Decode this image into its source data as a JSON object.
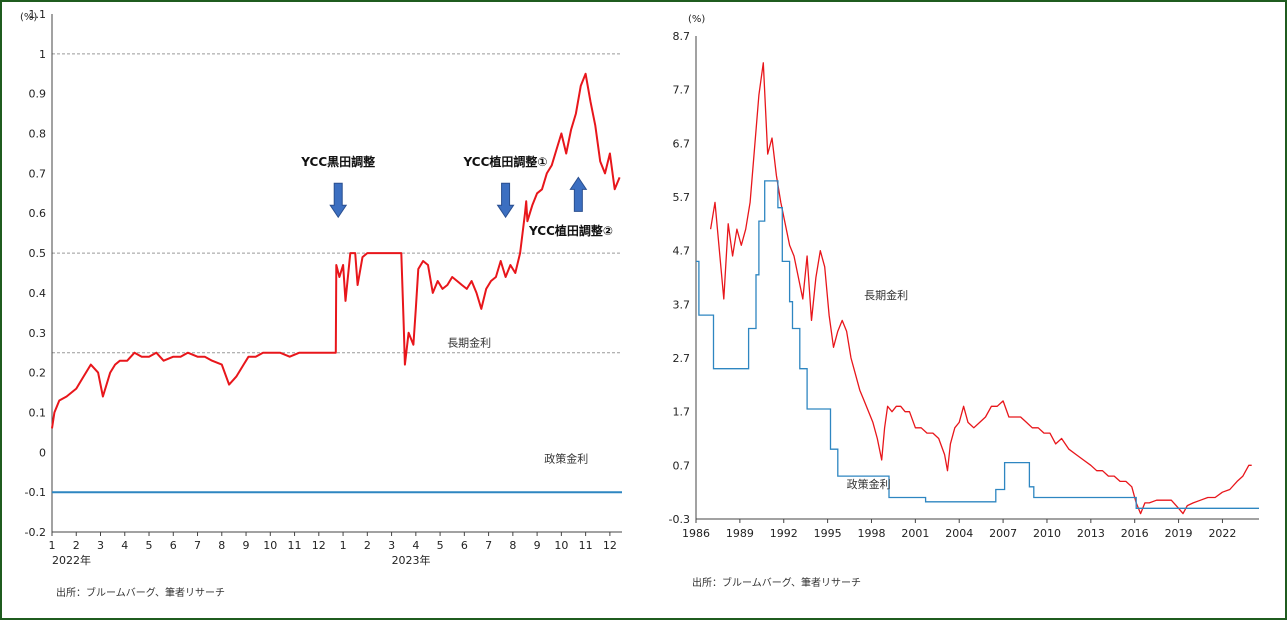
{
  "colors": {
    "long_rate": "#e8161b",
    "policy_rate": "#2e86c1",
    "arrow": "#3c6fc1",
    "frame": "#1f5c1f",
    "grid": "#9a9a9a",
    "axis": "#444444"
  },
  "chart_data": [
    {
      "type": "line",
      "unit": "(%)",
      "ylim": [
        -0.2,
        1.1
      ],
      "y_ticks": [
        -0.2,
        -0.1,
        0,
        0.1,
        0.2,
        0.3,
        0.4,
        0.5,
        0.6,
        0.7,
        0.8,
        0.9,
        1,
        1.1
      ],
      "y_tick_labels": [
        "-0.2",
        "-0.1",
        "0",
        "0.1",
        "0.2",
        "0.3",
        "0.4",
        "0.5",
        "0.6",
        "0.7",
        "0.8",
        "0.9",
        "1",
        "1.1"
      ],
      "x_tick_labels": [
        "1",
        "2",
        "3",
        "4",
        "5",
        "6",
        "7",
        "8",
        "9",
        "10",
        "11",
        "12",
        "1",
        "2",
        "3",
        "4",
        "5",
        "6",
        "7",
        "8",
        "9",
        "10",
        "11",
        "12"
      ],
      "year_labels": [
        {
          "text": "2022年",
          "month_index": 0
        },
        {
          "text": "2023年",
          "month_index": 14
        }
      ],
      "xlim": [
        0,
        23.5
      ],
      "dashed_lines": [
        0.25,
        0.5,
        1.0
      ],
      "series": [
        {
          "name": "長期金利",
          "x": [
            0,
            0.1,
            0.3,
            0.6,
            1,
            1.3,
            1.6,
            1.9,
            2.1,
            2.4,
            2.6,
            2.8,
            3.1,
            3.4,
            3.7,
            4,
            4.3,
            4.6,
            5,
            5.3,
            5.6,
            6,
            6.3,
            6.6,
            7,
            7.3,
            7.6,
            7.9,
            8.1,
            8.4,
            8.7,
            9,
            9.4,
            9.8,
            10.2,
            10.6,
            11,
            11.4,
            11.7,
            11.72,
            11.85,
            12,
            12.1,
            12.3,
            12.5,
            12.6,
            12.8,
            13,
            13.2,
            13.4,
            13.6,
            13.8,
            14,
            14.2,
            14.4,
            14.5,
            14.55,
            14.7,
            14.9,
            15,
            15.1,
            15.3,
            15.5,
            15.7,
            15.9,
            16.1,
            16.3,
            16.5,
            16.7,
            16.9,
            17.1,
            17.3,
            17.5,
            17.7,
            17.9,
            18.1,
            18.3,
            18.5,
            18.7,
            18.9,
            19.1,
            19.3,
            19.5,
            19.55,
            19.6,
            19.8,
            20,
            20.2,
            20.4,
            20.6,
            20.8,
            21,
            21.2,
            21.4,
            21.6,
            21.8,
            22,
            22.2,
            22.4,
            22.6,
            22.8,
            23,
            23.2,
            23.4
          ],
          "y": [
            0.06,
            0.1,
            0.13,
            0.14,
            0.16,
            0.19,
            0.22,
            0.2,
            0.14,
            0.2,
            0.22,
            0.23,
            0.23,
            0.25,
            0.24,
            0.24,
            0.25,
            0.23,
            0.24,
            0.24,
            0.25,
            0.24,
            0.24,
            0.23,
            0.22,
            0.17,
            0.19,
            0.22,
            0.24,
            0.24,
            0.25,
            0.25,
            0.25,
            0.24,
            0.25,
            0.25,
            0.25,
            0.25,
            0.25,
            0.47,
            0.44,
            0.47,
            0.38,
            0.5,
            0.5,
            0.42,
            0.49,
            0.5,
            0.5,
            0.5,
            0.5,
            0.5,
            0.5,
            0.5,
            0.5,
            0.32,
            0.22,
            0.3,
            0.27,
            0.36,
            0.46,
            0.48,
            0.47,
            0.4,
            0.43,
            0.41,
            0.42,
            0.44,
            0.43,
            0.42,
            0.41,
            0.43,
            0.4,
            0.36,
            0.41,
            0.43,
            0.44,
            0.48,
            0.44,
            0.47,
            0.45,
            0.5,
            0.6,
            0.63,
            0.58,
            0.62,
            0.65,
            0.66,
            0.7,
            0.72,
            0.76,
            0.8,
            0.75,
            0.81,
            0.85,
            0.92,
            0.95,
            0.88,
            0.82,
            0.73,
            0.7,
            0.75,
            0.66,
            0.69
          ]
        },
        {
          "name": "政策金利",
          "x": [
            0,
            23.5
          ],
          "y": [
            -0.1,
            -0.1
          ]
        }
      ],
      "annotations": [
        {
          "text": "YCC黒田調整",
          "arrow": "down",
          "at_x": 11.8,
          "at_y": 0.59
        },
        {
          "text": "YCC植田調整①",
          "arrow": "down",
          "at_x": 18.7,
          "at_y": 0.59
        },
        {
          "text": "YCC植田調整②",
          "arrow": "up",
          "at_x": 21.7,
          "at_y": 0.6
        }
      ],
      "labels": {
        "long_rate": "長期金利",
        "policy_rate": "政策金利"
      },
      "source": "出所：ブルームバーグ、筆者リサーチ"
    },
    {
      "type": "line",
      "unit": "(%)",
      "ylim": [
        -0.3,
        8.7
      ],
      "y_ticks": [
        -0.3,
        0.7,
        1.7,
        2.7,
        3.7,
        4.7,
        5.7,
        6.7,
        7.7,
        8.7
      ],
      "y_tick_labels": [
        "-0.3",
        "0.7",
        "1.7",
        "2.7",
        "3.7",
        "4.7",
        "5.7",
        "6.7",
        "7.7",
        "8.7"
      ],
      "x_ticks": [
        1986,
        1989,
        1992,
        1995,
        1998,
        2001,
        2004,
        2007,
        2010,
        2013,
        2016,
        2019,
        2022
      ],
      "x_tick_labels": [
        "1986",
        "1989",
        "1992",
        "1995",
        "1998",
        "2001",
        "2004",
        "2007",
        "2010",
        "2013",
        "2016",
        "2019",
        "2022"
      ],
      "xlim": [
        1986,
        2024.5
      ],
      "series": [
        {
          "name": "長期金利",
          "x": [
            1987,
            1987.3,
            1987.6,
            1987.9,
            1988.2,
            1988.5,
            1988.8,
            1989.1,
            1989.4,
            1989.7,
            1990,
            1990.3,
            1990.6,
            1990.9,
            1991.2,
            1991.5,
            1991.8,
            1992.1,
            1992.4,
            1992.7,
            1993,
            1993.3,
            1993.6,
            1993.9,
            1994.2,
            1994.5,
            1994.8,
            1995.1,
            1995.4,
            1995.7,
            1996,
            1996.3,
            1996.6,
            1996.9,
            1997.2,
            1997.5,
            1997.8,
            1998.1,
            1998.4,
            1998.7,
            1998.9,
            1999.1,
            1999.4,
            1999.7,
            2000,
            2000.3,
            2000.6,
            2001,
            2001.4,
            2001.8,
            2002.2,
            2002.6,
            2003,
            2003.2,
            2003.4,
            2003.7,
            2004,
            2004.3,
            2004.6,
            2005,
            2005.4,
            2005.8,
            2006.2,
            2006.6,
            2007,
            2007.4,
            2007.8,
            2008.2,
            2008.6,
            2009,
            2009.4,
            2009.8,
            2010.2,
            2010.6,
            2011,
            2011.5,
            2012,
            2012.5,
            2013,
            2013.4,
            2013.8,
            2014.2,
            2014.6,
            2015,
            2015.4,
            2015.8,
            2016.1,
            2016.4,
            2016.7,
            2017,
            2017.5,
            2018,
            2018.5,
            2019,
            2019.3,
            2019.6,
            2020,
            2020.5,
            2021,
            2021.5,
            2022,
            2022.5,
            2023,
            2023.4,
            2023.8,
            2024
          ],
          "y": [
            5.1,
            5.6,
            4.7,
            3.8,
            5.2,
            4.6,
            5.1,
            4.8,
            5.1,
            5.6,
            6.6,
            7.6,
            8.2,
            6.5,
            6.8,
            6.1,
            5.6,
            5.2,
            4.8,
            4.6,
            4.2,
            3.8,
            4.6,
            3.4,
            4.2,
            4.7,
            4.4,
            3.5,
            2.9,
            3.2,
            3.4,
            3.2,
            2.7,
            2.4,
            2.1,
            1.9,
            1.7,
            1.5,
            1.2,
            0.8,
            1.4,
            1.8,
            1.7,
            1.8,
            1.8,
            1.7,
            1.7,
            1.4,
            1.4,
            1.3,
            1.3,
            1.2,
            0.9,
            0.6,
            1.1,
            1.4,
            1.5,
            1.8,
            1.5,
            1.4,
            1.5,
            1.6,
            1.8,
            1.8,
            1.9,
            1.6,
            1.6,
            1.6,
            1.5,
            1.4,
            1.4,
            1.3,
            1.3,
            1.1,
            1.2,
            1.0,
            0.9,
            0.8,
            0.7,
            0.6,
            0.6,
            0.5,
            0.5,
            0.4,
            0.4,
            0.3,
            0.0,
            -0.2,
            0.0,
            0.0,
            0.05,
            0.05,
            0.05,
            -0.1,
            -0.2,
            -0.05,
            0.0,
            0.05,
            0.1,
            0.1,
            0.2,
            0.25,
            0.4,
            0.5,
            0.7,
            0.7
          ]
        },
        {
          "name": "政策金利",
          "x": [
            1986,
            1986.2,
            1987,
            1987.2,
            1989.4,
            1989.6,
            1990.1,
            1990.3,
            1990.7,
            1991.6,
            1991.9,
            1992.4,
            1992.6,
            1993.1,
            1993.6,
            1995.2,
            1995.7,
            1998.9,
            1999.2,
            2001.2,
            2001.7,
            2006.2,
            2006.5,
            2007.1,
            2008.8,
            2009.1,
            2016.1,
            2024.5
          ],
          "y": [
            4.5,
            3.5,
            3.5,
            2.5,
            2.5,
            3.25,
            4.25,
            5.25,
            6.0,
            5.5,
            4.5,
            3.75,
            3.25,
            2.5,
            1.75,
            1.0,
            0.5,
            0.5,
            0.1,
            0.1,
            0.02,
            0.02,
            0.25,
            0.75,
            0.3,
            0.1,
            -0.1,
            -0.1
          ]
        }
      ],
      "labels": {
        "long_rate": "長期金利",
        "policy_rate": "政策金利"
      },
      "source": "出所：ブルームバーグ、筆者リサーチ"
    }
  ]
}
